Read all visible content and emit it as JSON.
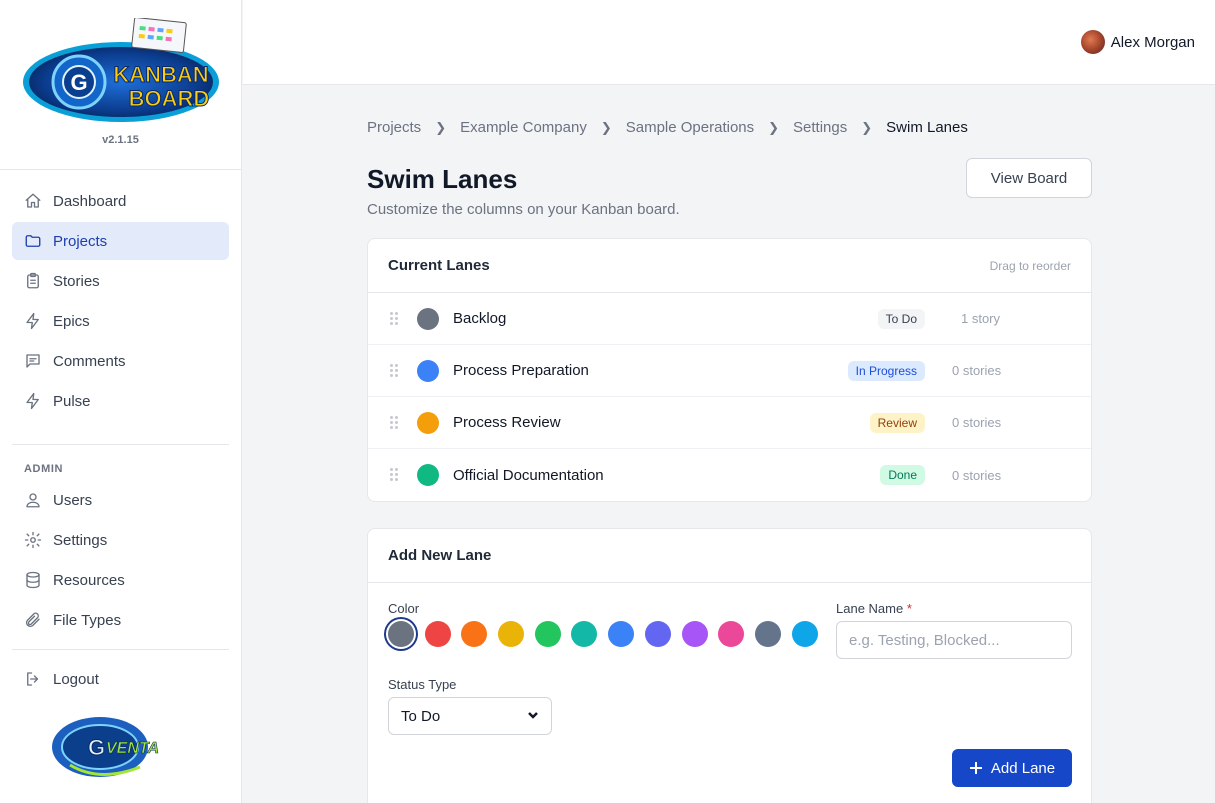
{
  "app": {
    "version": "v2.1.15",
    "logo_text": "KANBAN BOARD",
    "footer_logo_text": "GVENTA"
  },
  "sidebar": {
    "items": [
      {
        "label": "Dashboard",
        "icon": "home-icon",
        "active": false
      },
      {
        "label": "Projects",
        "icon": "folder-icon",
        "active": true
      },
      {
        "label": "Stories",
        "icon": "clipboard-icon",
        "active": false
      },
      {
        "label": "Epics",
        "icon": "lightning-icon",
        "active": false
      },
      {
        "label": "Comments",
        "icon": "comment-icon",
        "active": false
      },
      {
        "label": "Pulse",
        "icon": "lightning-icon",
        "active": false
      }
    ],
    "admin_label": "ADMIN",
    "admin_items": [
      {
        "label": "Users",
        "icon": "user-icon"
      },
      {
        "label": "Settings",
        "icon": "gear-icon"
      },
      {
        "label": "Resources",
        "icon": "database-icon"
      },
      {
        "label": "File Types",
        "icon": "paperclip-icon"
      }
    ],
    "logout_label": "Logout"
  },
  "header": {
    "user_name": "Alex Morgan"
  },
  "breadcrumb": [
    "Projects",
    "Example Company",
    "Sample Operations",
    "Settings",
    "Swim Lanes"
  ],
  "page": {
    "title": "Swim Lanes",
    "subtitle": "Customize the columns on your Kanban board.",
    "view_board_label": "View Board"
  },
  "lanes_card": {
    "title": "Current Lanes",
    "hint": "Drag to reorder",
    "lanes": [
      {
        "name": "Backlog",
        "color": "#6b7280",
        "status": "To Do",
        "status_bg": "#f3f4f6",
        "status_fg": "#374151",
        "count": "1 story"
      },
      {
        "name": "Process Preparation",
        "color": "#3b82f6",
        "status": "In Progress",
        "status_bg": "#dbeafe",
        "status_fg": "#1d4ed8",
        "count": "0 stories"
      },
      {
        "name": "Process Review",
        "color": "#f59e0b",
        "status": "Review",
        "status_bg": "#fef3c7",
        "status_fg": "#92400e",
        "count": "0 stories"
      },
      {
        "name": "Official Documentation",
        "color": "#10b981",
        "status": "Done",
        "status_bg": "#d1fae5",
        "status_fg": "#047857",
        "count": "0 stories"
      }
    ]
  },
  "add_card": {
    "title": "Add New Lane",
    "color_label": "Color",
    "colors": [
      "#6b7280",
      "#ef4444",
      "#f97316",
      "#eab308",
      "#22c55e",
      "#14b8a6",
      "#3b82f6",
      "#6366f1",
      "#a855f7",
      "#ec4899",
      "#64748b",
      "#0ea5e9"
    ],
    "selected_color_index": 0,
    "name_label": "Lane Name",
    "name_required_mark": "*",
    "name_placeholder": "e.g. Testing, Blocked...",
    "status_label": "Status Type",
    "status_value": "To Do",
    "add_label": "Add Lane"
  }
}
